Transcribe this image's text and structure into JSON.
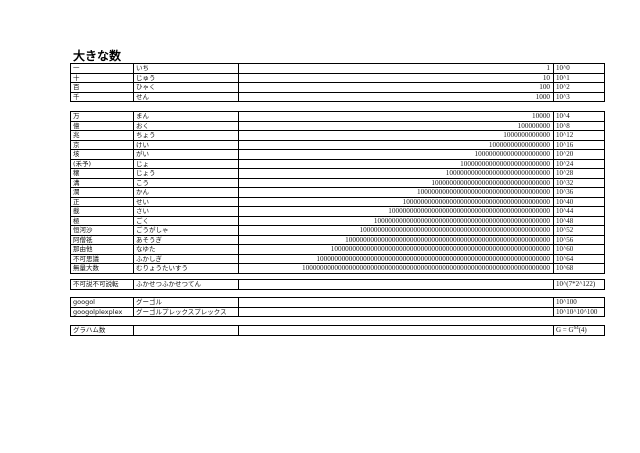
{
  "title": "大きな数",
  "group1": [
    [
      "一",
      "いち",
      "1",
      "10^0"
    ],
    [
      "十",
      "じゅう",
      "10",
      "10^1"
    ],
    [
      "百",
      "ひゃく",
      "100",
      "10^2"
    ],
    [
      "千",
      "せん",
      "1000",
      "10^3"
    ]
  ],
  "group2": [
    [
      "万",
      "まん",
      "10000",
      "10^4"
    ],
    [
      "億",
      "おく",
      "100000000",
      "10^8"
    ],
    [
      "兆",
      "ちょう",
      "1000000000000",
      "10^12"
    ],
    [
      "京",
      "けい",
      "10000000000000000",
      "10^16"
    ],
    [
      "垓",
      "がい",
      "100000000000000000000",
      "10^20"
    ],
    [
      "(禾予)",
      "じょ",
      "1000000000000000000000000",
      "10^24"
    ],
    [
      "穣",
      "じょう",
      "10000000000000000000000000000",
      "10^28"
    ],
    [
      "溝",
      "こう",
      "100000000000000000000000000000000",
      "10^32"
    ],
    [
      "澗",
      "かん",
      "1000000000000000000000000000000000000",
      "10^36"
    ],
    [
      "正",
      "せい",
      "10000000000000000000000000000000000000000",
      "10^40"
    ],
    [
      "載",
      "さい",
      "100000000000000000000000000000000000000000000",
      "10^44"
    ],
    [
      "極",
      "ごく",
      "1000000000000000000000000000000000000000000000000",
      "10^48"
    ],
    [
      "恒河沙",
      "ごうがしゃ",
      "10000000000000000000000000000000000000000000000000000",
      "10^52"
    ],
    [
      "阿僧祇",
      "あそうぎ",
      "100000000000000000000000000000000000000000000000000000000",
      "10^56"
    ],
    [
      "那由他",
      "なゆた",
      "1000000000000000000000000000000000000000000000000000000000000",
      "10^60"
    ],
    [
      "不可思議",
      "ふかしぎ",
      "10000000000000000000000000000000000000000000000000000000000000000",
      "10^64"
    ],
    [
      "無量大数",
      "むりょうたいすう",
      "100000000000000000000000000000000000000000000000000000000000000000000",
      "10^68"
    ]
  ],
  "group3": [
    [
      "不可説不可説転",
      "ふかせつふかせつてん",
      "",
      "10^(7*2^122)"
    ]
  ],
  "group4": [
    [
      "googol",
      "グーゴル",
      "",
      "10^100"
    ],
    [
      "googolplexplex",
      "グーゴルプレックスプレックス",
      "",
      "10^10^10^100"
    ]
  ],
  "graham": {
    "name": "グラハム数",
    "kana": "",
    "value": "",
    "power_base": "G = G",
    "power_sup": "64",
    "power_arg": "(4)"
  }
}
